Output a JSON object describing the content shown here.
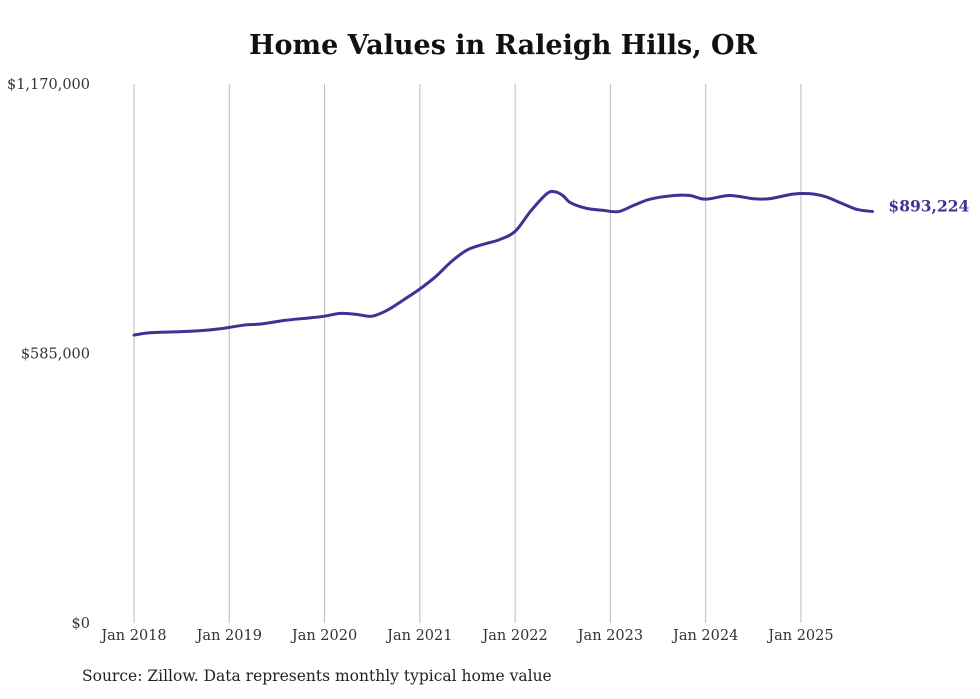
{
  "chart_data": {
    "type": "line",
    "title": "Home Values in Raleigh Hills, OR",
    "source": "Source: Zillow. Data represents monthly typical home value",
    "xlabel": "",
    "ylabel": "",
    "ylim": [
      0,
      1170000
    ],
    "y_ticks": [
      {
        "value": 0,
        "label": "$0"
      },
      {
        "value": 585000,
        "label": "$585,000"
      },
      {
        "value": 1170000,
        "label": "$1,170,000"
      }
    ],
    "x_ticks": [
      {
        "date": "2018-01",
        "label": "Jan 2018"
      },
      {
        "date": "2019-01",
        "label": "Jan 2019"
      },
      {
        "date": "2020-01",
        "label": "Jan 2020"
      },
      {
        "date": "2021-01",
        "label": "Jan 2021"
      },
      {
        "date": "2022-01",
        "label": "Jan 2022"
      },
      {
        "date": "2023-01",
        "label": "Jan 2023"
      },
      {
        "date": "2024-01",
        "label": "Jan 2024"
      },
      {
        "date": "2025-01",
        "label": "Jan 2025"
      }
    ],
    "grid": "vertical",
    "line_color": "#3b3494",
    "end_label": "$893,224",
    "series": [
      {
        "name": "Typical home value",
        "points": [
          [
            "2018-01",
            625000
          ],
          [
            "2018-03",
            630000
          ],
          [
            "2018-06",
            632000
          ],
          [
            "2018-09",
            634000
          ],
          [
            "2018-12",
            639000
          ],
          [
            "2019-03",
            647000
          ],
          [
            "2019-05",
            649000
          ],
          [
            "2019-08",
            657000
          ],
          [
            "2019-11",
            662000
          ],
          [
            "2020-01",
            666000
          ],
          [
            "2020-03",
            672000
          ],
          [
            "2020-05",
            670000
          ],
          [
            "2020-07",
            666000
          ],
          [
            "2020-09",
            680000
          ],
          [
            "2020-11",
            702000
          ],
          [
            "2021-01",
            725000
          ],
          [
            "2021-03",
            752000
          ],
          [
            "2021-05",
            785000
          ],
          [
            "2021-07",
            810000
          ],
          [
            "2021-09",
            822000
          ],
          [
            "2021-11",
            832000
          ],
          [
            "2022-01",
            850000
          ],
          [
            "2022-03",
            895000
          ],
          [
            "2022-05",
            932000
          ],
          [
            "2022-06",
            936000
          ],
          [
            "2022-07",
            928000
          ],
          [
            "2022-08",
            912000
          ],
          [
            "2022-10",
            900000
          ],
          [
            "2022-12",
            896000
          ],
          [
            "2023-02",
            893000
          ],
          [
            "2023-04",
            907000
          ],
          [
            "2023-06",
            920000
          ],
          [
            "2023-09",
            928000
          ],
          [
            "2023-11",
            928000
          ],
          [
            "2024-01",
            920000
          ],
          [
            "2024-04",
            928000
          ],
          [
            "2024-07",
            921000
          ],
          [
            "2024-09",
            921000
          ],
          [
            "2024-12",
            931000
          ],
          [
            "2025-02",
            932000
          ],
          [
            "2025-04",
            926000
          ],
          [
            "2025-06",
            912000
          ],
          [
            "2025-08",
            898000
          ],
          [
            "2025-10",
            893224
          ]
        ]
      }
    ]
  }
}
